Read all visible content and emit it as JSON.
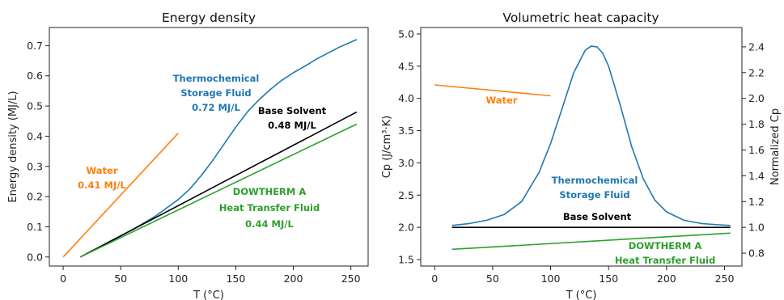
{
  "colors": {
    "thermochemical": "#1f77b4",
    "water": "#ff7f0e",
    "base_solvent": "#000000",
    "dowtherm": "#2ca02c"
  },
  "chart_data": [
    {
      "type": "line",
      "title": "Energy density",
      "xlabel": "T (°C)",
      "ylabel": "Energy density (MJ/L)",
      "xlim": [
        -12,
        265
      ],
      "ylim": [
        -0.03,
        0.76
      ],
      "xticks": [
        "0",
        "50",
        "100",
        "150",
        "200",
        "250"
      ],
      "yticks": [
        "0.0",
        "0.1",
        "0.2",
        "0.3",
        "0.4",
        "0.5",
        "0.6",
        "0.7"
      ],
      "grid": false,
      "legend": "none",
      "series": [
        {
          "key": "thermochemical",
          "x": [
            15,
            40,
            60,
            80,
            100,
            110,
            120,
            130,
            140,
            150,
            160,
            170,
            180,
            190,
            200,
            210,
            220,
            230,
            240,
            255
          ],
          "y": [
            0,
            0.05,
            0.09,
            0.135,
            0.19,
            0.225,
            0.27,
            0.32,
            0.375,
            0.43,
            0.48,
            0.52,
            0.555,
            0.585,
            0.61,
            0.632,
            0.655,
            0.675,
            0.695,
            0.72
          ]
        },
        {
          "key": "water",
          "x": [
            0,
            100
          ],
          "y": [
            0,
            0.41
          ]
        },
        {
          "key": "base_solvent",
          "x": [
            15,
            255
          ],
          "y": [
            0,
            0.48
          ]
        },
        {
          "key": "dowtherm",
          "x": [
            15,
            255
          ],
          "y": [
            0,
            0.44
          ]
        }
      ],
      "annotations": [
        {
          "key": "thermochemical",
          "lines": [
            "Thermochemical",
            "Storage Fluid",
            "0.72 MJ/L"
          ]
        },
        {
          "key": "base_solvent",
          "lines": [
            "Base Solvent",
            "0.48 MJ/L"
          ]
        },
        {
          "key": "water",
          "lines": [
            "Water",
            "0.41 MJ/L"
          ]
        },
        {
          "key": "dowtherm",
          "lines": [
            "DOWTHERM A",
            "Heat Transfer Fluid",
            "0.44 MJ/L"
          ]
        }
      ]
    },
    {
      "type": "line",
      "title": "Volumetric heat capacity",
      "xlabel": "T (°C)",
      "ylabel": "Cp (J/cm³·K)",
      "ylabel_right": "Normalized Cp",
      "xlim": [
        -12,
        265
      ],
      "ylim": [
        1.4,
        5.1
      ],
      "ylim_right": [
        0.7,
        2.55
      ],
      "xticks": [
        "0",
        "50",
        "100",
        "150",
        "200",
        "250"
      ],
      "yticks": [
        "1.5",
        "2.0",
        "2.5",
        "3.0",
        "3.5",
        "4.0",
        "4.5",
        "5.0"
      ],
      "yticks_right": [
        "0.8",
        "1.0",
        "1.2",
        "1.4",
        "1.6",
        "1.8",
        "2.0",
        "2.2",
        "2.4"
      ],
      "grid": false,
      "legend": "none",
      "series": [
        {
          "key": "thermochemical",
          "x": [
            15,
            30,
            45,
            60,
            75,
            90,
            100,
            110,
            120,
            130,
            135,
            140,
            145,
            150,
            160,
            170,
            180,
            190,
            200,
            215,
            230,
            245,
            255
          ],
          "y": [
            2.03,
            2.06,
            2.11,
            2.2,
            2.4,
            2.85,
            3.3,
            3.85,
            4.4,
            4.75,
            4.81,
            4.8,
            4.7,
            4.5,
            3.9,
            3.25,
            2.75,
            2.42,
            2.24,
            2.11,
            2.06,
            2.04,
            2.03
          ]
        },
        {
          "key": "water",
          "x": [
            0,
            100
          ],
          "y": [
            4.21,
            4.04
          ]
        },
        {
          "key": "base_solvent",
          "x": [
            15,
            255
          ],
          "y": [
            2.0,
            2.0
          ]
        },
        {
          "key": "dowtherm",
          "x": [
            15,
            255
          ],
          "y": [
            1.66,
            1.91
          ]
        }
      ],
      "annotations": [
        {
          "key": "water",
          "lines": [
            "Water"
          ]
        },
        {
          "key": "thermochemical",
          "lines": [
            "Thermochemical",
            "Storage Fluid"
          ]
        },
        {
          "key": "base_solvent",
          "lines": [
            "Base Solvent"
          ]
        },
        {
          "key": "dowtherm",
          "lines": [
            "DOWTHERM A",
            "Heat Transfer Fluid"
          ]
        }
      ]
    }
  ]
}
